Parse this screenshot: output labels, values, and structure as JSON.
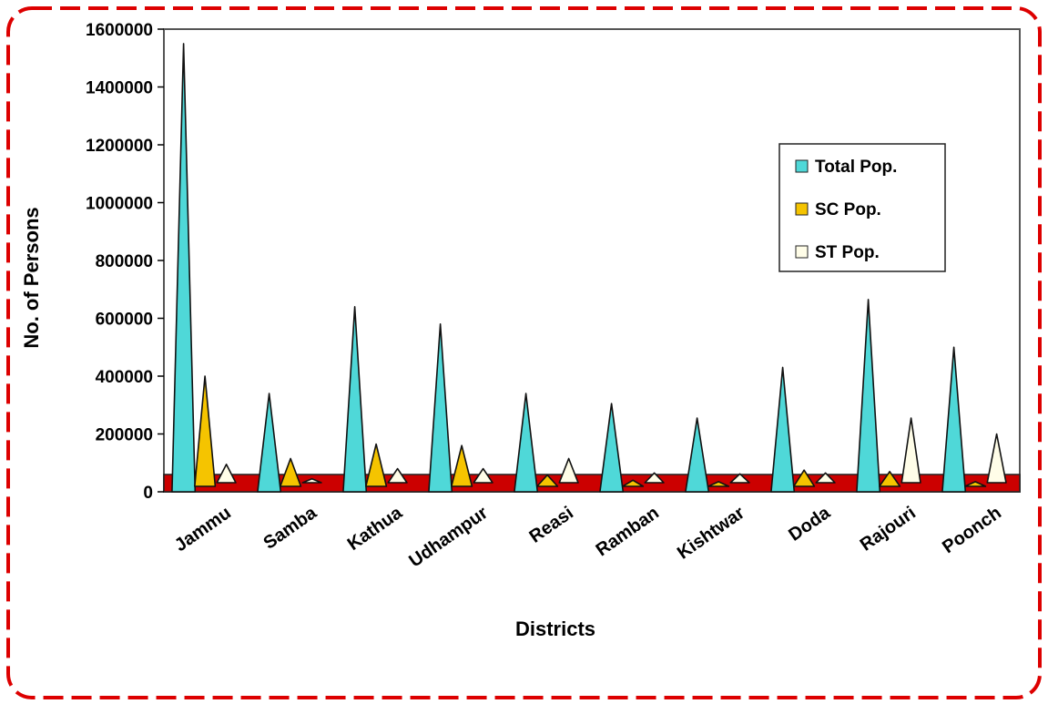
{
  "chart_data": {
    "type": "area",
    "title": "",
    "xlabel": "Districts",
    "ylabel": "No. of Persons",
    "ylim": [
      0,
      1600000
    ],
    "yticks": [
      0,
      200000,
      400000,
      600000,
      800000,
      1000000,
      1200000,
      1400000,
      1600000
    ],
    "grid": false,
    "legend_position": "right",
    "categories": [
      "Jammu",
      "Samba",
      "Kathua",
      "Udhampur",
      "Reasi",
      "Ramban",
      "Kishtwar",
      "Doda",
      "Rajouri",
      "Poonch"
    ],
    "series": [
      {
        "name": "Total Pop.",
        "color": "#4fd8d8",
        "values": [
          1550000,
          340000,
          640000,
          580000,
          340000,
          305000,
          255000,
          430000,
          665000,
          500000
        ]
      },
      {
        "name": "SC Pop.",
        "color": "#f5c400",
        "values": [
          400000,
          115000,
          165000,
          160000,
          58000,
          40000,
          35000,
          75000,
          70000,
          35000
        ]
      },
      {
        "name": "ST Pop.",
        "color": "#fffde8",
        "values": [
          95000,
          45000,
          80000,
          80000,
          115000,
          65000,
          62000,
          65000,
          255000,
          200000
        ]
      }
    ],
    "floor_color": "#cc0000",
    "frame_color": "#dd0000"
  }
}
